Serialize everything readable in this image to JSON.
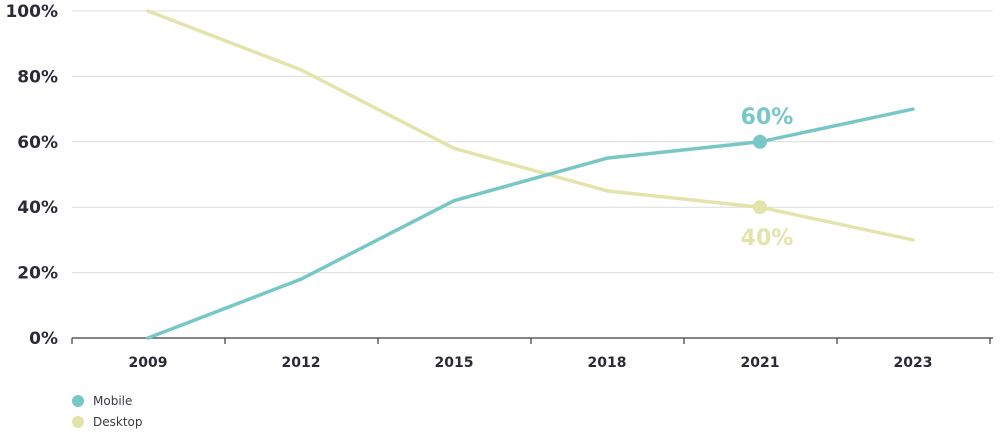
{
  "chart_data": {
    "type": "line",
    "x": [
      "2009",
      "2012",
      "2015",
      "2018",
      "2021",
      "2023"
    ],
    "ylim": [
      0,
      100
    ],
    "yticks": [
      "0%",
      "20%",
      "40%",
      "60%",
      "80%",
      "100%"
    ],
    "ytick_values": [
      0,
      20,
      40,
      60,
      80,
      100
    ],
    "grid": true,
    "legend_placement": "bottom-left",
    "series": [
      {
        "name": "Mobile",
        "color": "#78c7c7",
        "values": [
          0,
          18,
          42,
          55,
          60,
          70
        ]
      },
      {
        "name": "Desktop",
        "color": "#e3e4ac",
        "values": [
          100,
          82,
          58,
          45,
          40,
          30
        ]
      }
    ],
    "annotations": [
      {
        "series": "Mobile",
        "x": "2021",
        "value": 60,
        "label": "60%",
        "position": "above"
      },
      {
        "series": "Desktop",
        "x": "2021",
        "value": 40,
        "label": "40%",
        "position": "below"
      }
    ]
  }
}
